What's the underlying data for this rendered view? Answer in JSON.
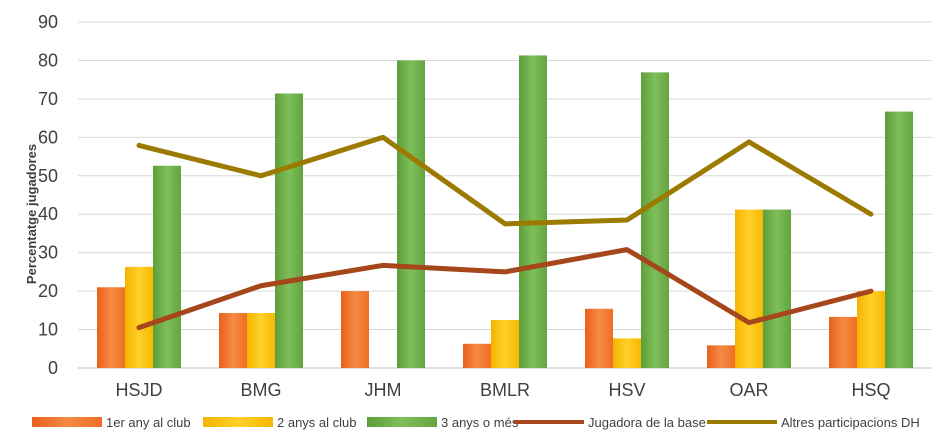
{
  "chart_data": {
    "type": "bar",
    "categories": [
      "HSJD",
      "BMG",
      "JHM",
      "BMLR",
      "HSV",
      "OAR",
      "HSQ"
    ],
    "ylabel": "Percentatge jugadores",
    "ylim": [
      0,
      90
    ],
    "yticks": [
      0,
      10,
      20,
      30,
      40,
      50,
      60,
      70,
      80,
      90
    ],
    "grid": true,
    "legend_position": "bottom",
    "series": [
      {
        "name": "1er any al club",
        "kind": "bar",
        "color": "#f07a2e",
        "values": [
          21,
          14.3,
          20,
          6.3,
          15.4,
          5.9,
          13.3
        ]
      },
      {
        "name": "2 anys al club",
        "kind": "bar",
        "color": "#ffc000",
        "values": [
          26.3,
          14.3,
          0,
          12.5,
          7.7,
          41.2,
          20
        ]
      },
      {
        "name": "3 anys o més",
        "kind": "bar",
        "color": "#6aaa46",
        "values": [
          52.6,
          71.4,
          80,
          81.3,
          76.9,
          41.2,
          66.7
        ]
      },
      {
        "name": "Jugadora de la base",
        "kind": "line",
        "color": "#a5461b",
        "values": [
          10.5,
          21.4,
          26.7,
          25,
          30.8,
          11.8,
          20
        ]
      },
      {
        "name": "Altres participacions DH",
        "kind": "line",
        "color": "#9c7a00",
        "values": [
          57.9,
          50,
          60,
          37.5,
          38.5,
          58.8,
          40
        ]
      }
    ]
  }
}
